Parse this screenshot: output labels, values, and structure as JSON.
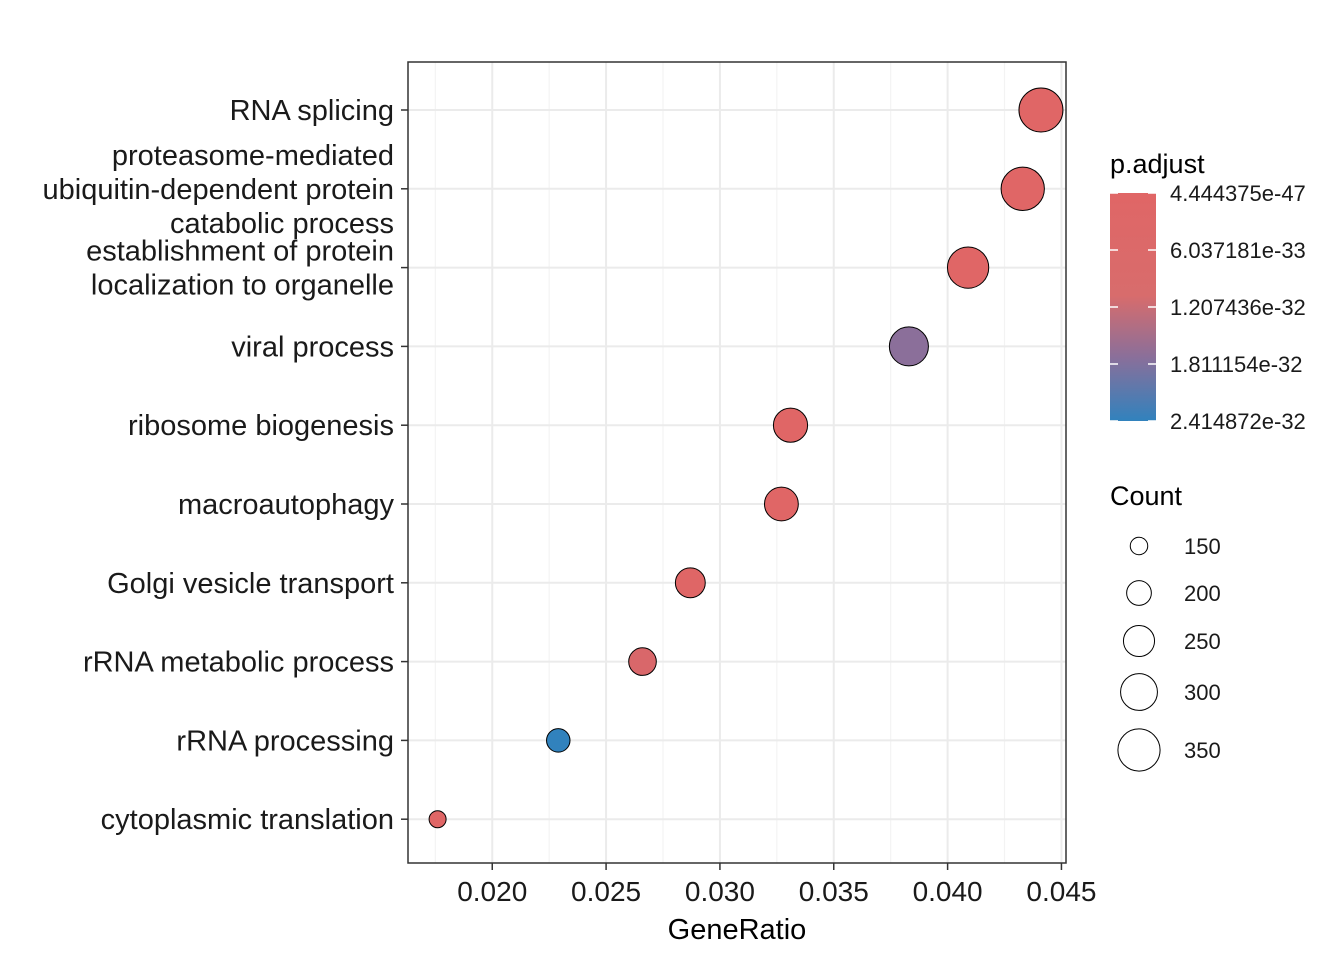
{
  "chart_data": {
    "type": "scatter",
    "xlabel": "GeneRatio",
    "ylabel": "",
    "xlim": [
      0.0163,
      0.0452
    ],
    "x_ticks": [
      "0.020",
      "0.025",
      "0.030",
      "0.035",
      "0.040",
      "0.045"
    ],
    "grid": true,
    "terms": [
      {
        "label_lines": [
          "RNA splicing"
        ],
        "gene_ratio": 0.0441,
        "count": 368,
        "p_adjust": 1e-46
      },
      {
        "label_lines": [
          "proteasome-mediated",
          "ubiquitin-dependent protein",
          "catabolic process"
        ],
        "gene_ratio": 0.0433,
        "count": 361,
        "p_adjust": 1e-45
      },
      {
        "label_lines": [
          "establishment of protein",
          "localization to organelle"
        ],
        "gene_ratio": 0.0409,
        "count": 341,
        "p_adjust": 1e-44
      },
      {
        "label_lines": [
          "viral process"
        ],
        "gene_ratio": 0.0383,
        "count": 320,
        "p_adjust": 1.2e-32
      },
      {
        "label_lines": [
          "ribosome biogenesis"
        ],
        "gene_ratio": 0.0331,
        "count": 276,
        "p_adjust": 1e-36
      },
      {
        "label_lines": [
          "macroautophagy"
        ],
        "gene_ratio": 0.0327,
        "count": 273,
        "p_adjust": 1e-35
      },
      {
        "label_lines": [
          "Golgi vesicle transport"
        ],
        "gene_ratio": 0.0287,
        "count": 240,
        "p_adjust": 1e-34
      },
      {
        "label_lines": [
          "rRNA metabolic process"
        ],
        "gene_ratio": 0.0266,
        "count": 222,
        "p_adjust": 1e-33
      },
      {
        "label_lines": [
          "rRNA processing"
        ],
        "gene_ratio": 0.0229,
        "count": 191,
        "p_adjust": 2.41e-32
      },
      {
        "label_lines": [
          "cytoplasmic translation"
        ],
        "gene_ratio": 0.0176,
        "count": 147,
        "p_adjust": 1e-40
      }
    ],
    "color_legend": {
      "title": "p.adjust",
      "labels": [
        "4.444375e-47",
        "6.037181e-33",
        "1.207436e-32",
        "1.811154e-32",
        "2.414872e-32"
      ],
      "values": [
        4.444375e-47,
        6.037181e-33,
        1.207436e-32,
        1.811154e-32,
        2.414872e-32
      ],
      "low_color": "#E06666",
      "mid_color": "#8A6F9A",
      "high_color": "#3182BD"
    },
    "size_legend": {
      "title": "Count",
      "labels": [
        "150",
        "200",
        "250",
        "300",
        "350"
      ],
      "values": [
        150,
        200,
        250,
        300,
        350
      ]
    }
  }
}
